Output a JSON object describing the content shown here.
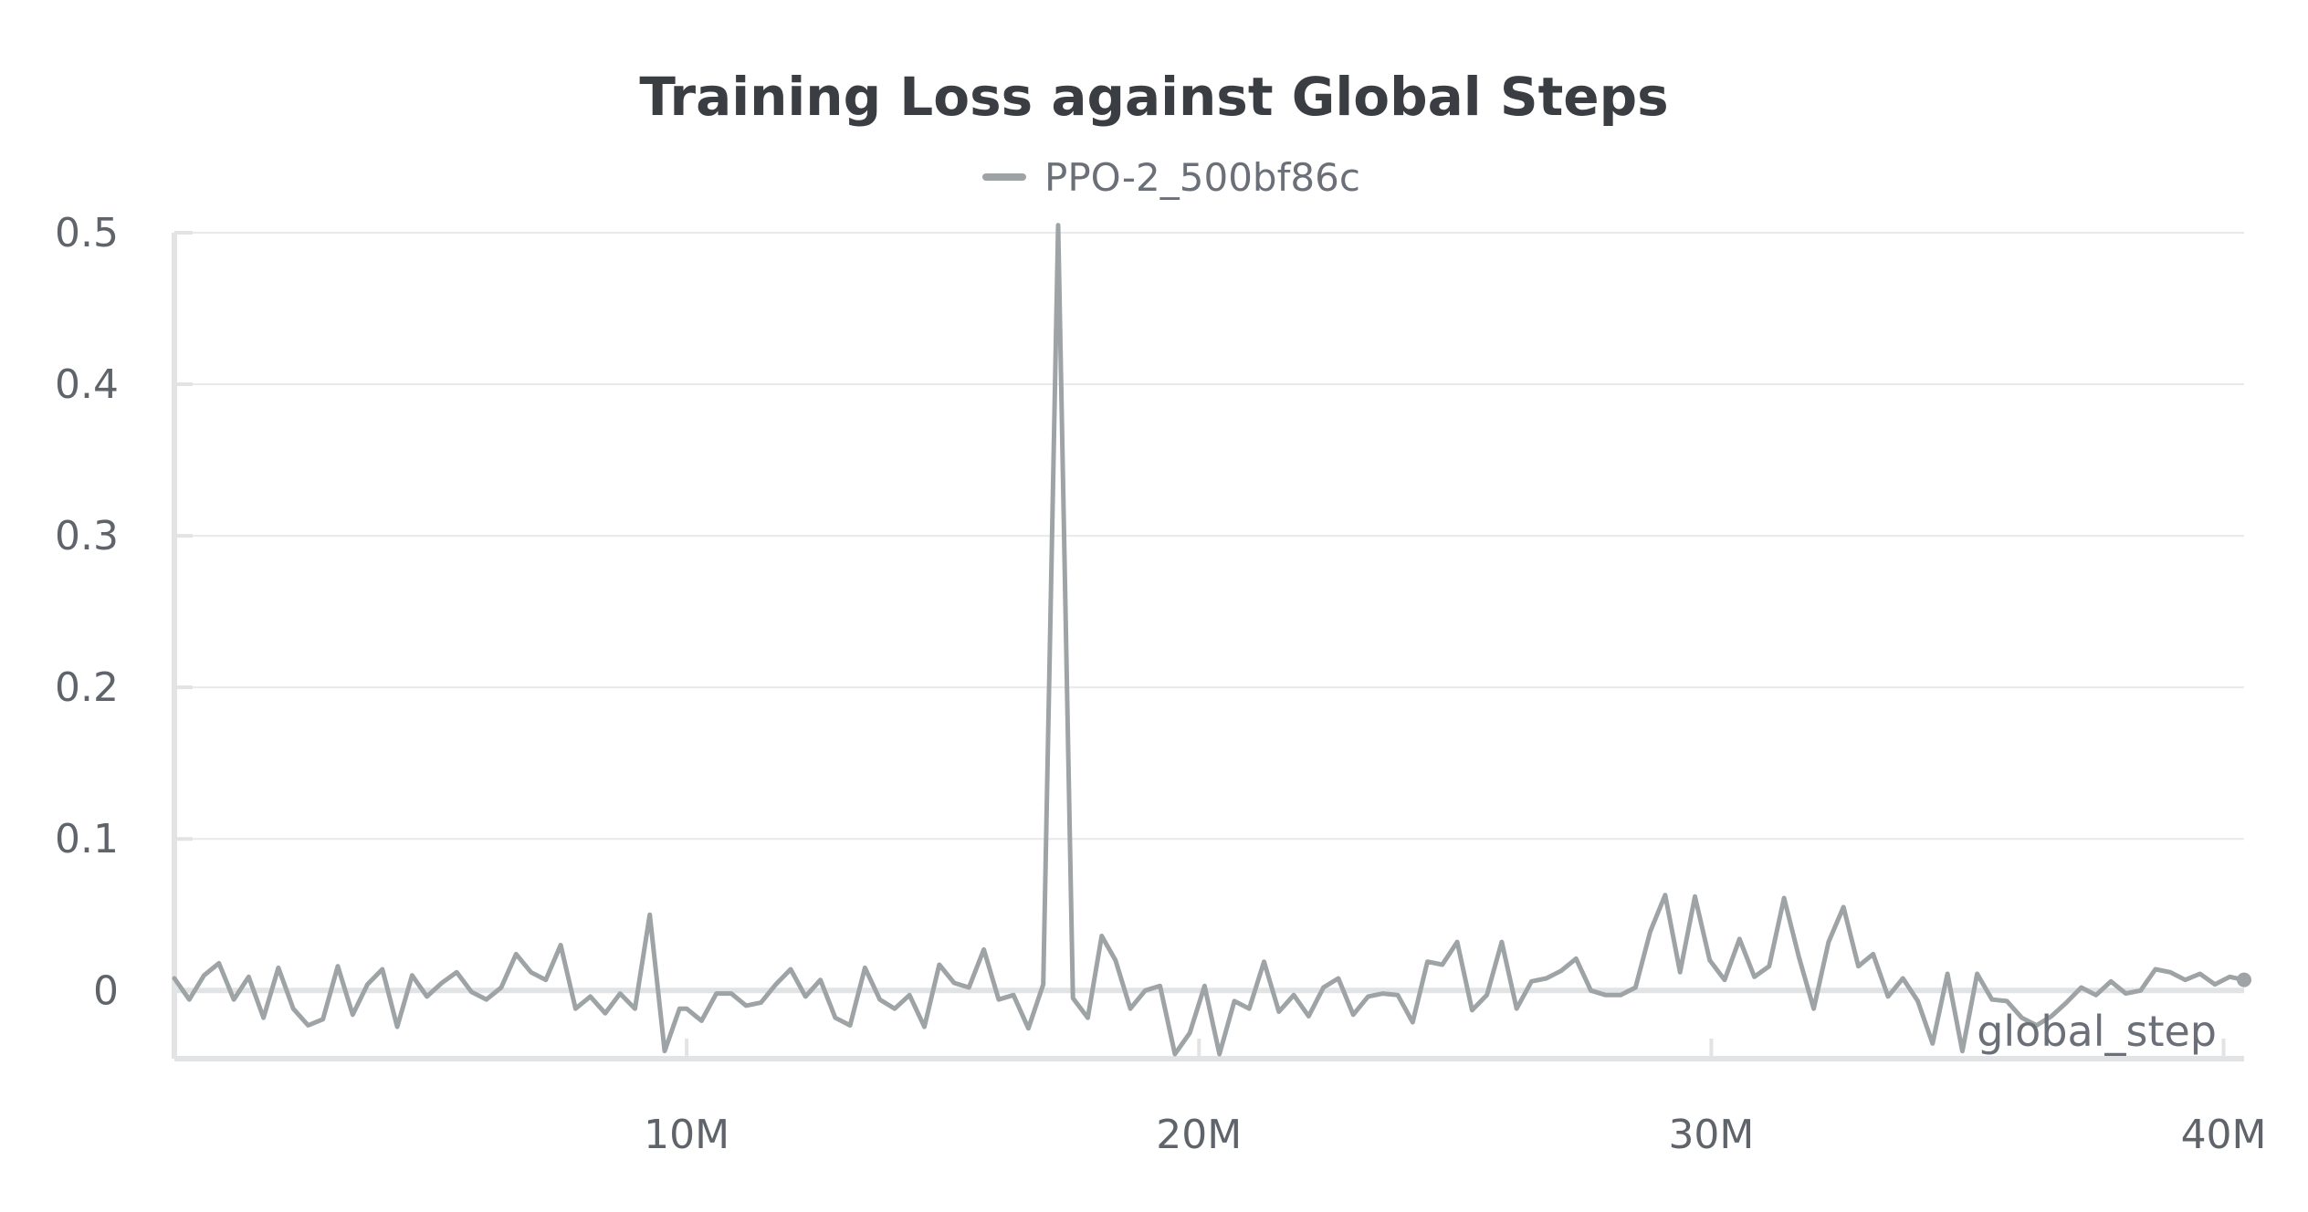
{
  "chart_data": {
    "type": "line",
    "title": "Training Loss against Global Steps",
    "xlabel": "global_step",
    "ylabel": "",
    "legend_position": "top-center",
    "grid": true,
    "xlim": [
      0,
      40400000
    ],
    "ylim": [
      -0.045,
      0.5
    ],
    "x_ticks": [
      10000000,
      20000000,
      30000000,
      40000000
    ],
    "x_tick_labels": [
      "10M",
      "20M",
      "30M",
      "40M"
    ],
    "y_ticks": [
      0,
      0.1,
      0.2,
      0.3,
      0.4,
      0.5
    ],
    "y_tick_labels": [
      "0",
      "0.1",
      "0.2",
      "0.3",
      "0.4",
      "0.5"
    ],
    "series": [
      {
        "name": "PPO-2_500bf86c",
        "color": "#9ea3a6",
        "x": [
          0,
          290000,
          580000,
          870000,
          1160000,
          1450000,
          1740000,
          2030000,
          2320000,
          2610000,
          2900000,
          3190000,
          3480000,
          3770000,
          4060000,
          4350000,
          4640000,
          4930000,
          5220000,
          5510000,
          5800000,
          6090000,
          6380000,
          6670000,
          6960000,
          7250000,
          7540000,
          7830000,
          8120000,
          8410000,
          8700000,
          8990000,
          9280000,
          9570000,
          9860000,
          10000000,
          10290000,
          10580000,
          10870000,
          11160000,
          11450000,
          11740000,
          12030000,
          12320000,
          12610000,
          12900000,
          13190000,
          13480000,
          13770000,
          14060000,
          14350000,
          14640000,
          14930000,
          15220000,
          15510000,
          15800000,
          16090000,
          16380000,
          16670000,
          16960000,
          17250000,
          17540000,
          17830000,
          18100000,
          18370000,
          18660000,
          18950000,
          19240000,
          19530000,
          19820000,
          20110000,
          20400000,
          20690000,
          20980000,
          21270000,
          21560000,
          21850000,
          22140000,
          22430000,
          22720000,
          23010000,
          23300000,
          23590000,
          23880000,
          24170000,
          24460000,
          24750000,
          25040000,
          25330000,
          25620000,
          25910000,
          26200000,
          26490000,
          26780000,
          27070000,
          27360000,
          27650000,
          27940000,
          28230000,
          28520000,
          28810000,
          29100000,
          29390000,
          29680000,
          29970000,
          30260000,
          30550000,
          30840000,
          31130000,
          31420000,
          31710000,
          32000000,
          32290000,
          32580000,
          32870000,
          33160000,
          33450000,
          33740000,
          34030000,
          34320000,
          34610000,
          34900000,
          35190000,
          35480000,
          35770000,
          36060000,
          36350000,
          36640000,
          36930000,
          37220000,
          37510000,
          37800000,
          38090000,
          38380000,
          38670000,
          38960000,
          39250000,
          39540000,
          39830000,
          40120000,
          40400000
        ],
        "values": [
          0.008,
          -0.006,
          0.01,
          0.018,
          -0.006,
          0.009,
          -0.018,
          0.015,
          -0.012,
          -0.023,
          -0.019,
          0.016,
          -0.016,
          0.004,
          0.014,
          -0.024,
          0.01,
          -0.004,
          0.005,
          0.012,
          -0.001,
          -0.006,
          0.002,
          0.024,
          0.012,
          0.007,
          0.03,
          -0.012,
          -0.004,
          -0.015,
          -0.002,
          -0.012,
          0.05,
          -0.04,
          -0.012,
          -0.012,
          -0.02,
          -0.002,
          -0.002,
          -0.01,
          -0.008,
          0.004,
          0.014,
          -0.004,
          0.007,
          -0.018,
          -0.023,
          0.015,
          -0.006,
          -0.012,
          -0.003,
          -0.024,
          0.017,
          0.005,
          0.002,
          0.027,
          -0.006,
          -0.003,
          -0.025,
          0.004,
          0.505,
          -0.005,
          -0.018,
          0.036,
          0.02,
          -0.012,
          0.0,
          0.003,
          -0.042,
          -0.028,
          0.003,
          -0.042,
          -0.007,
          -0.012,
          0.019,
          -0.014,
          -0.003,
          -0.017,
          0.002,
          0.008,
          -0.016,
          -0.004,
          -0.002,
          -0.003,
          -0.021,
          0.019,
          0.017,
          0.032,
          -0.013,
          -0.003,
          0.032,
          -0.012,
          0.006,
          0.008,
          0.013,
          0.021,
          0.0,
          -0.003,
          -0.003,
          0.002,
          0.039,
          0.063,
          0.012,
          0.062,
          0.02,
          0.007,
          0.034,
          0.009,
          0.016,
          0.061,
          0.022,
          -0.012,
          0.032,
          0.055,
          0.016,
          0.024,
          -0.004,
          0.008,
          -0.007,
          -0.035,
          0.011,
          -0.04,
          0.011,
          -0.006,
          -0.007,
          -0.018,
          -0.023,
          -0.017,
          -0.008,
          0.002,
          -0.003,
          0.006,
          -0.002,
          0.0,
          0.014,
          0.012,
          0.007,
          0.011,
          0.004,
          0.009,
          0.007
        ]
      }
    ]
  }
}
